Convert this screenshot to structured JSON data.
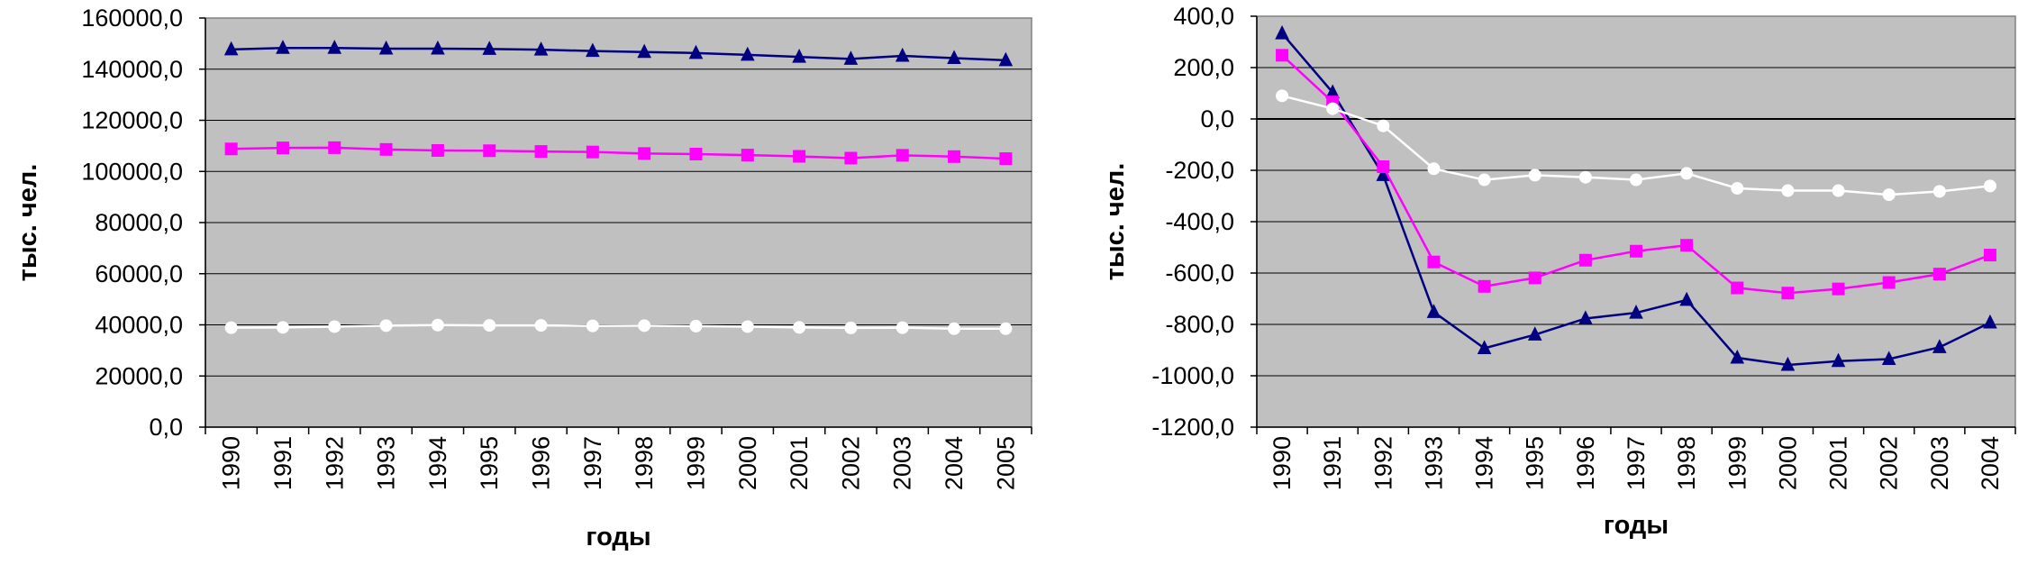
{
  "chart_data": [
    {
      "type": "line",
      "xlabel": "годы",
      "ylabel": "тыс. чел.",
      "ylim": [
        0,
        160000
      ],
      "ytick_step": 20000,
      "ytick_labels": [
        "0,0",
        "20000,0",
        "40000,0",
        "60000,0",
        "80000,0",
        "100000,0",
        "120000,0",
        "140000,0",
        "160000,0"
      ],
      "categories": [
        "1990",
        "1991",
        "1992",
        "1993",
        "1994",
        "1995",
        "1996",
        "1997",
        "1998",
        "1999",
        "2000",
        "2001",
        "2002",
        "2003",
        "2004",
        "2005"
      ],
      "grid": true,
      "legend": "none",
      "plot_background": "#c0c0c0",
      "series": [
        {
          "marker": "triangle",
          "color": "#000080",
          "values": [
            147700,
            148300,
            148300,
            148000,
            148000,
            147900,
            147600,
            147100,
            146700,
            146300,
            145600,
            144800,
            144000,
            145200,
            144300,
            143500
          ]
        },
        {
          "marker": "square",
          "color": "#ff00ff",
          "values": [
            108800,
            109200,
            109300,
            108600,
            108200,
            108100,
            107800,
            107600,
            107000,
            106800,
            106400,
            105900,
            105200,
            106300,
            105800,
            105000
          ]
        },
        {
          "marker": "circle",
          "color": "#ffffff",
          "values": [
            38900,
            39000,
            39300,
            39700,
            39900,
            39800,
            39800,
            39600,
            39700,
            39500,
            39300,
            39000,
            38800,
            38900,
            38500,
            38500
          ]
        }
      ]
    },
    {
      "type": "line",
      "xlabel": "годы",
      "ylabel": "тыс. чел.",
      "ylim": [
        -1200,
        400
      ],
      "ytick_step": 200,
      "ytick_labels": [
        "-1200,0",
        "-1000,0",
        "-800,0",
        "-600,0",
        "-400,0",
        "-200,0",
        "0,0",
        "200,0",
        "400,0"
      ],
      "categories": [
        "1990",
        "1991",
        "1992",
        "1993",
        "1994",
        "1995",
        "1996",
        "1997",
        "1998",
        "1999",
        "2000",
        "2001",
        "2002",
        "2003",
        "2004"
      ],
      "grid": true,
      "legend": "none",
      "plot_background": "#c0c0c0",
      "series": [
        {
          "marker": "triangle",
          "color": "#000080",
          "values": [
            333,
            103,
            -219,
            -752,
            -893,
            -840,
            -777,
            -755,
            -705,
            -930,
            -958,
            -943,
            -935,
            -889,
            -793
          ]
        },
        {
          "marker": "square",
          "color": "#ff00ff",
          "values": [
            248,
            66,
            -186,
            -557,
            -652,
            -619,
            -550,
            -515,
            -492,
            -658,
            -678,
            -662,
            -637,
            -604,
            -530
          ]
        },
        {
          "marker": "circle",
          "color": "#ffffff",
          "values": [
            90,
            40,
            -27,
            -194,
            -237,
            -219,
            -227,
            -237,
            -212,
            -270,
            -279,
            -279,
            -295,
            -282,
            -261
          ]
        }
      ]
    }
  ]
}
